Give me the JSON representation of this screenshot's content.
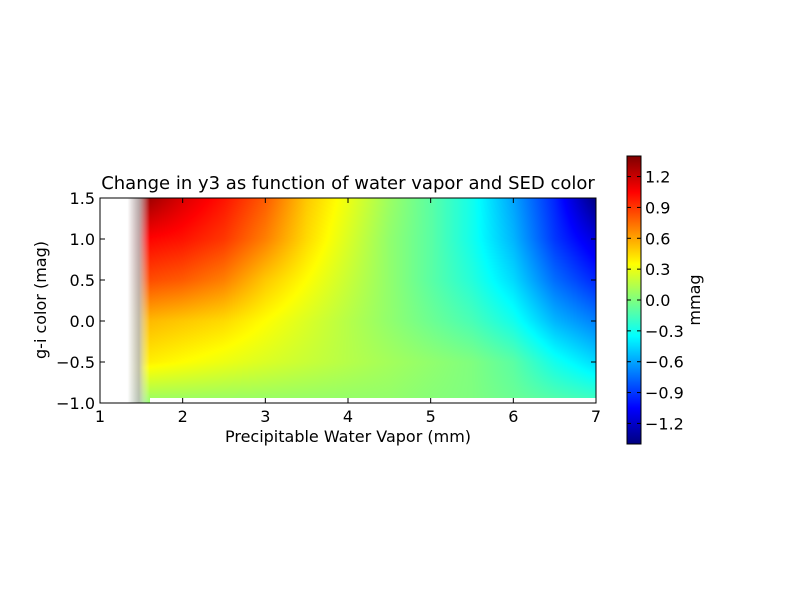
{
  "chart_data": {
    "type": "heatmap",
    "title": "Change in y3 as function of water vapor and SED color",
    "xlabel": "Precipitable Water Vapor (mm)",
    "ylabel": "g-i color (mag)",
    "xlim": [
      1,
      7
    ],
    "ylim": [
      -1.0,
      1.5
    ],
    "xticks": [
      "1",
      "2",
      "3",
      "4",
      "5",
      "6",
      "7"
    ],
    "yticks": [
      "−1.0",
      "−0.5",
      "0.0",
      "0.5",
      "1.0",
      "1.5"
    ],
    "x_grid": [
      1.5,
      2.0,
      2.5,
      3.0,
      3.5,
      4.0,
      4.5,
      5.0,
      5.5,
      6.0,
      6.5,
      7.0
    ],
    "y_grid": [
      -1.0,
      -0.5,
      0.0,
      0.5,
      1.0,
      1.5
    ],
    "z_values_mmag": [
      [
        0.05,
        0.05,
        0.05,
        0.05,
        0.05,
        0.05,
        0.05,
        0.02,
        0.0,
        -0.05,
        -0.1,
        -0.15
      ],
      [
        0.4,
        0.35,
        0.3,
        0.25,
        0.2,
        0.15,
        0.1,
        0.05,
        0.0,
        -0.1,
        -0.3,
        -0.45
      ],
      [
        0.55,
        0.5,
        0.45,
        0.35,
        0.25,
        0.15,
        0.05,
        -0.05,
        -0.15,
        -0.3,
        -0.55,
        -0.7
      ],
      [
        0.85,
        0.8,
        0.7,
        0.5,
        0.35,
        0.2,
        0.05,
        -0.1,
        -0.25,
        -0.45,
        -0.75,
        -0.95
      ],
      [
        1.05,
        1.0,
        0.9,
        0.7,
        0.45,
        0.25,
        0.05,
        -0.1,
        -0.3,
        -0.55,
        -0.9,
        -1.15
      ],
      [
        1.35,
        1.15,
        1.0,
        0.8,
        0.5,
        0.3,
        0.08,
        -0.1,
        -0.3,
        -0.6,
        -0.95,
        -1.4
      ]
    ],
    "colorbar": {
      "label": "mmag",
      "range": [
        -1.4,
        1.4
      ],
      "ticks": [
        "1.2",
        "0.9",
        "0.6",
        "0.3",
        "0.0",
        "−0.3",
        "−0.6",
        "−0.9",
        "−1.2"
      ],
      "tick_values": [
        1.2,
        0.9,
        0.6,
        0.3,
        0.0,
        -0.3,
        -0.6,
        -0.9,
        -1.2
      ],
      "colormap": "jet"
    },
    "grid": false
  }
}
